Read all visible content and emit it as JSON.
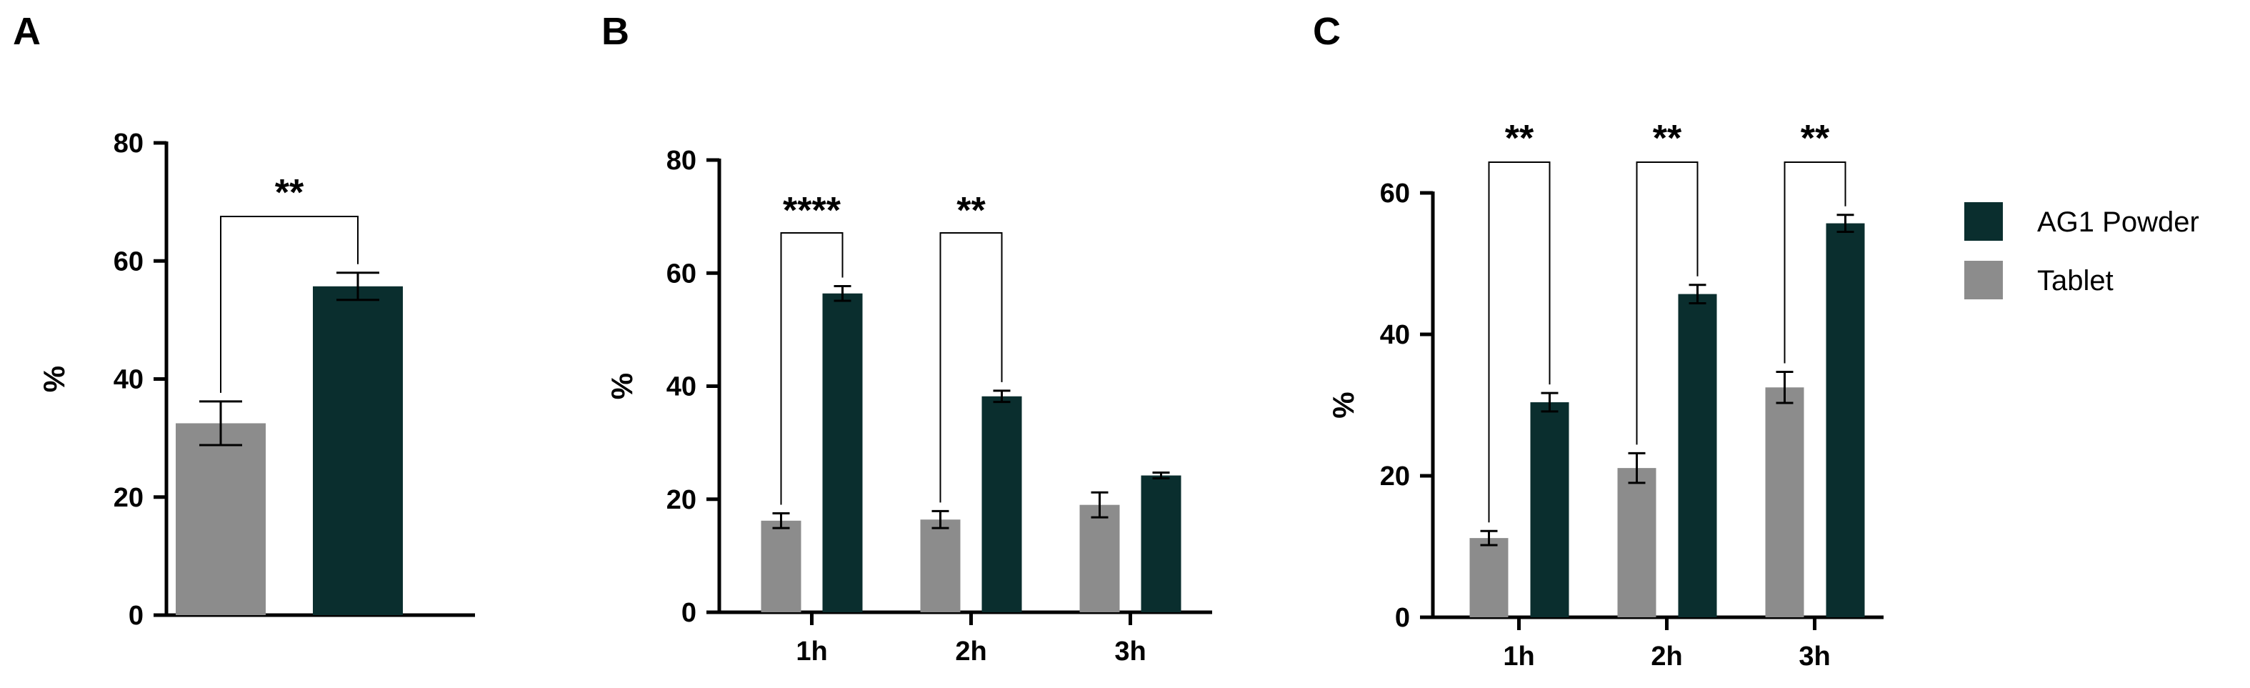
{
  "colors": {
    "ag1": "#0a2e2e",
    "tablet": "#8c8c8c"
  },
  "legend": [
    {
      "name": "AG1 Powder",
      "color_key": "ag1"
    },
    {
      "name": "Tablet",
      "color_key": "tablet"
    }
  ],
  "chart_data": [
    {
      "panel": "A",
      "type": "bar",
      "ylabel": "%",
      "ylim": [
        0,
        80
      ],
      "yticks": [
        0,
        20,
        40,
        60,
        80
      ],
      "categories": [
        ""
      ],
      "series": [
        {
          "name": "Tablet",
          "values": [
            32.5
          ],
          "errors": [
            3.7
          ]
        },
        {
          "name": "AG1 Powder",
          "values": [
            55.7
          ],
          "errors": [
            2.3
          ]
        }
      ],
      "significance": [
        {
          "category": 0,
          "label": "**"
        }
      ]
    },
    {
      "panel": "B",
      "type": "bar",
      "ylabel": "%",
      "ylim": [
        0,
        80
      ],
      "yticks": [
        0,
        20,
        40,
        60,
        80
      ],
      "categories": [
        "1h",
        "2h",
        "3h"
      ],
      "series": [
        {
          "name": "Tablet",
          "values": [
            16.2,
            16.4,
            19.0
          ],
          "errors": [
            1.3,
            1.5,
            2.2
          ]
        },
        {
          "name": "AG1 Powder",
          "values": [
            56.4,
            38.2,
            24.2
          ],
          "errors": [
            1.3,
            1.0,
            0.5
          ]
        }
      ],
      "significance": [
        {
          "category": 0,
          "label": "****"
        },
        {
          "category": 1,
          "label": "**"
        }
      ]
    },
    {
      "panel": "C",
      "type": "bar",
      "ylabel": "%",
      "ylim": [
        0,
        60
      ],
      "yticks": [
        0,
        20,
        40,
        60
      ],
      "categories": [
        "1h",
        "2h",
        "3h"
      ],
      "series": [
        {
          "name": "Tablet",
          "values": [
            11.2,
            21.1,
            32.5
          ],
          "errors": [
            1.0,
            2.1,
            2.2
          ]
        },
        {
          "name": "AG1 Powder",
          "values": [
            30.4,
            45.7,
            55.7
          ],
          "errors": [
            1.3,
            1.3,
            1.2
          ]
        }
      ],
      "significance": [
        {
          "category": 0,
          "label": "**"
        },
        {
          "category": 1,
          "label": "**"
        },
        {
          "category": 2,
          "label": "**"
        }
      ]
    }
  ]
}
